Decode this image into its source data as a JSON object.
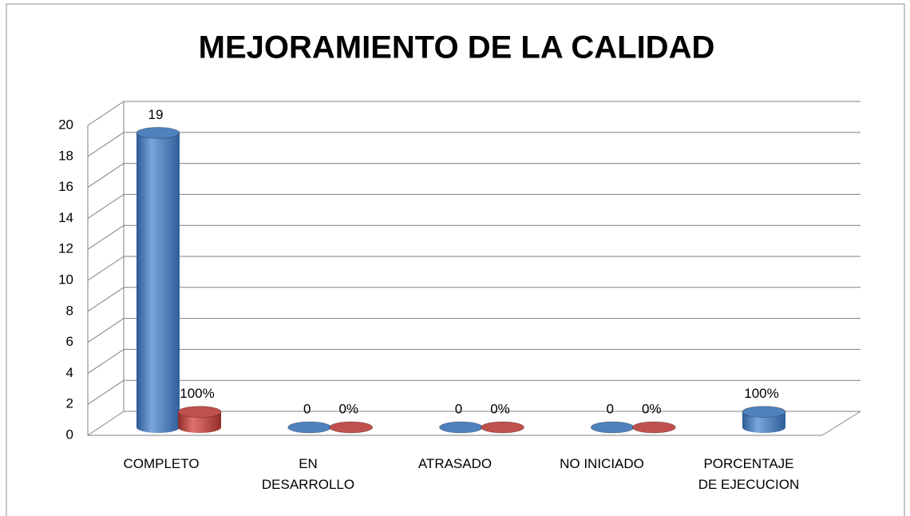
{
  "chart_data": {
    "type": "bar3d",
    "title": "MEJORAMIENTO DE LA CALIDAD",
    "categories": [
      "COMPLETO",
      "EN DESARROLLO",
      "ATRASADO",
      "NO INICIADO",
      "PORCENTAJE DE EJECUCION"
    ],
    "series": [
      {
        "color": "#4f81bd",
        "values": [
          19,
          0,
          0,
          0,
          1
        ],
        "value_labels": [
          "19",
          "0",
          "0",
          "0",
          "100%"
        ]
      },
      {
        "color": "#c0504d",
        "values": [
          1,
          0,
          0,
          0,
          null
        ],
        "value_labels": [
          "100%",
          "0%",
          "0%",
          "0%",
          null
        ]
      }
    ],
    "ylim": [
      0,
      20
    ],
    "yticks": [
      0,
      2,
      4,
      6,
      8,
      10,
      12,
      14,
      16,
      18,
      20
    ],
    "grid": true
  }
}
